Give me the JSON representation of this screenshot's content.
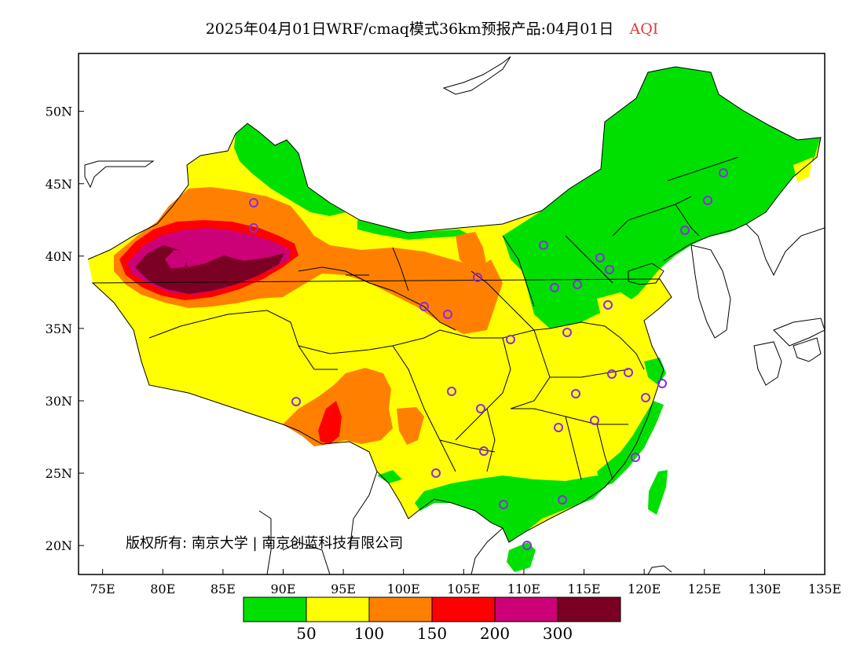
{
  "title": {
    "text": "2025年04月01日WRF/cmaq模式36km预报产品:04月01日",
    "variable": "AQI",
    "variable_color": "#e23a3a"
  },
  "map": {
    "lon_range": [
      73,
      135
    ],
    "lat_range": [
      18,
      54
    ],
    "x_ticks": [
      "75E",
      "80E",
      "85E",
      "90E",
      "95E",
      "100E",
      "105E",
      "110E",
      "115E",
      "120E",
      "125E",
      "130E",
      "135E"
    ],
    "y_ticks": [
      "50N",
      "45N",
      "40N",
      "35N",
      "30N",
      "25N",
      "20N"
    ],
    "copyright": "版权所有: 南京大学 | 南京创蓝科技有限公司"
  },
  "legend": {
    "colors": [
      "#00e000",
      "#ffff00",
      "#ff8000",
      "#ff0000",
      "#cc0077",
      "#7a0024"
    ],
    "labels": [
      "50",
      "100",
      "150",
      "200",
      "300"
    ]
  },
  "stations_color": "#8a2be2"
}
